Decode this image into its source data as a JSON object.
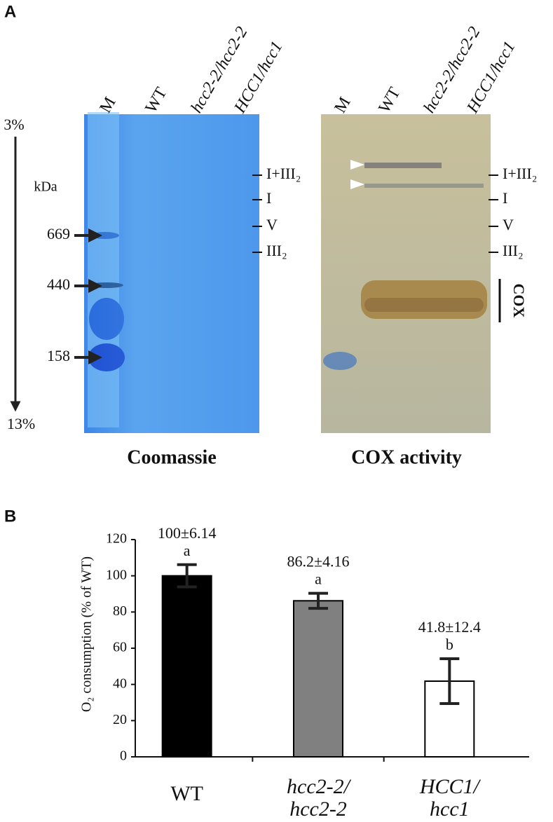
{
  "panel_a": {
    "label": "A",
    "gels": [
      {
        "title": "Coomassie",
        "lanes": [
          "M",
          "WT",
          "hcc2-2/hcc2-2",
          "HCC1/hcc1"
        ]
      },
      {
        "title": "COX activity",
        "lanes": [
          "M",
          "WT",
          "hcc2-2/hcc2-2",
          "HCC1/hcc1"
        ]
      }
    ],
    "complex_labels": [
      "I+III₂",
      "I",
      "V",
      "III₂"
    ],
    "cox_label": "COX",
    "gradient": {
      "top": "3%",
      "bottom": "13%"
    },
    "marker_unit": "kDa",
    "markers": [
      669,
      440,
      158
    ]
  },
  "chart_data": {
    "type": "bar",
    "panel_label": "B",
    "y_label": "O₂ consumption (% of WT)",
    "categories": [
      "WT",
      "hcc2-2/hcc2-2",
      "HCC1/hcc1"
    ],
    "values": [
      100,
      86.2,
      41.8
    ],
    "errors": [
      6.14,
      4.16,
      12.4
    ],
    "value_labels": [
      "100±6.14",
      "86.2±4.16",
      "41.8±12.4"
    ],
    "letters": [
      "a",
      "a",
      "b"
    ],
    "colors": [
      "#000000",
      "#808080",
      "#ffffff"
    ],
    "ylim": [
      0,
      120
    ],
    "yticks": [
      0,
      20,
      40,
      60,
      80,
      100,
      120
    ]
  }
}
